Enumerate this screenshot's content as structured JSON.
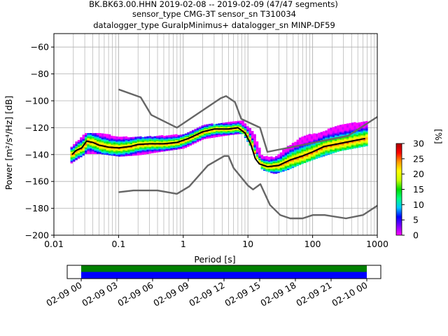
{
  "chart_data": [
    {
      "type": "heatmap",
      "title_lines": [
        "BK.BK63.00.HHN   2019-02-08 -- 2019-02-09  (47/47 segments)",
        "sensor_type CMG-3T sensor_sn T310034",
        "datalogger_type GuralpMinimus+ datalogger_sn MINP-DF59"
      ],
      "xlabel": "Period [s]",
      "ylabel": "Power [m²/s⁴/Hz] [dB]",
      "x_scale": "log",
      "xlim": [
        0.01,
        1000
      ],
      "ylim": [
        -200,
        -50
      ],
      "x_ticks": [
        "0.01",
        "0.1",
        "1",
        "10",
        "100",
        "1000"
      ],
      "y_ticks": [
        "−200",
        "−180",
        "−160",
        "−140",
        "−120",
        "−100",
        "−80",
        "−60"
      ],
      "grid": "on",
      "colorbar": {
        "label": "[%]",
        "range": [
          0,
          30
        ],
        "ticks": [
          "0",
          "5",
          "10",
          "15",
          "20",
          "25",
          "30"
        ],
        "colormap": [
          "#ff00ff",
          "#8000ff",
          "#0000ff",
          "#00c8ff",
          "#00ff80",
          "#00dd00",
          "#c8ff00",
          "#ffff00",
          "#ff9900",
          "#ff0000",
          "#aa0000"
        ]
      },
      "series": [
        {
          "name": "",
          "role": "noise-model-high",
          "color": "#666666",
          "x": [
            0.1,
            0.22,
            0.32,
            0.8,
            3.8,
            4.6,
            6.3,
            7.9,
            15.4,
            20,
            354.8,
            1000
          ],
          "y": [
            -91.5,
            -97.4,
            -110.5,
            -120,
            -98,
            -96.5,
            -101,
            -113.5,
            -120,
            -138,
            -126,
            -112
          ]
        },
        {
          "name": "",
          "role": "noise-model-low",
          "color": "#666666",
          "x": [
            0.1,
            0.17,
            0.4,
            0.8,
            1.24,
            2.4,
            4.3,
            5,
            6,
            10,
            12,
            15.6,
            21.9,
            31.6,
            45,
            70,
            101,
            154,
            328,
            600,
            1000
          ],
          "y": [
            -168,
            -166.7,
            -166.7,
            -169.2,
            -163.7,
            -148.1,
            -141.1,
            -141.1,
            -150,
            -163,
            -166,
            -162,
            -177.5,
            -185,
            -187.5,
            -187.5,
            -185,
            -185,
            -187.5,
            -185,
            -178
          ]
        },
        {
          "name": "",
          "role": "mean",
          "color": "#000000",
          "x": [
            0.019,
            0.022,
            0.027,
            0.032,
            0.04,
            0.05,
            0.07,
            0.1,
            0.15,
            0.2,
            0.3,
            0.5,
            0.8,
            1.2,
            2,
            3,
            5,
            7,
            9,
            11,
            13,
            15,
            20,
            30,
            45,
            70,
            100,
            150,
            250,
            400,
            650
          ],
          "y": [
            -140,
            -137,
            -135,
            -130,
            -131,
            -133,
            -134.5,
            -135,
            -134,
            -132.5,
            -132,
            -132,
            -131,
            -128,
            -123,
            -121,
            -121,
            -120,
            -124,
            -132,
            -143,
            -147,
            -149,
            -148,
            -144,
            -141,
            -138,
            -134,
            -132,
            -130,
            -128
          ]
        }
      ],
      "ppsd_bands": [
        {
          "x": [
            0.018,
            0.03,
            0.05,
            0.1,
            0.2,
            0.5,
            1,
            2,
            5,
            8,
            12,
            16,
            25,
            40,
            70,
            120,
            250,
            700
          ],
          "lo": [
            -146,
            -139,
            -139,
            -141,
            -140,
            -137,
            -135,
            -128,
            -125,
            -124,
            -138,
            -151,
            -154,
            -151,
            -146,
            -142,
            -137,
            -133
          ],
          "hi": [
            -134,
            -124,
            -124,
            -127,
            -127,
            -126,
            -125,
            -118,
            -116,
            -115,
            -124,
            -141,
            -142,
            -134,
            -126,
            -124,
            -118,
            -115
          ]
        }
      ]
    },
    {
      "type": "timeline",
      "x_ticks": [
        "02-09 00",
        "02-09 03",
        "02-09 06",
        "02-09 09",
        "02-09 12",
        "02-09 15",
        "02-09 18",
        "02-09 21",
        "02-10 00"
      ],
      "bands": [
        {
          "color": "#008000",
          "start": "02-09 00",
          "end": "02-10 00"
        },
        {
          "color": "#0000ff",
          "start": "02-09 00",
          "end": "02-10 00"
        }
      ]
    }
  ]
}
